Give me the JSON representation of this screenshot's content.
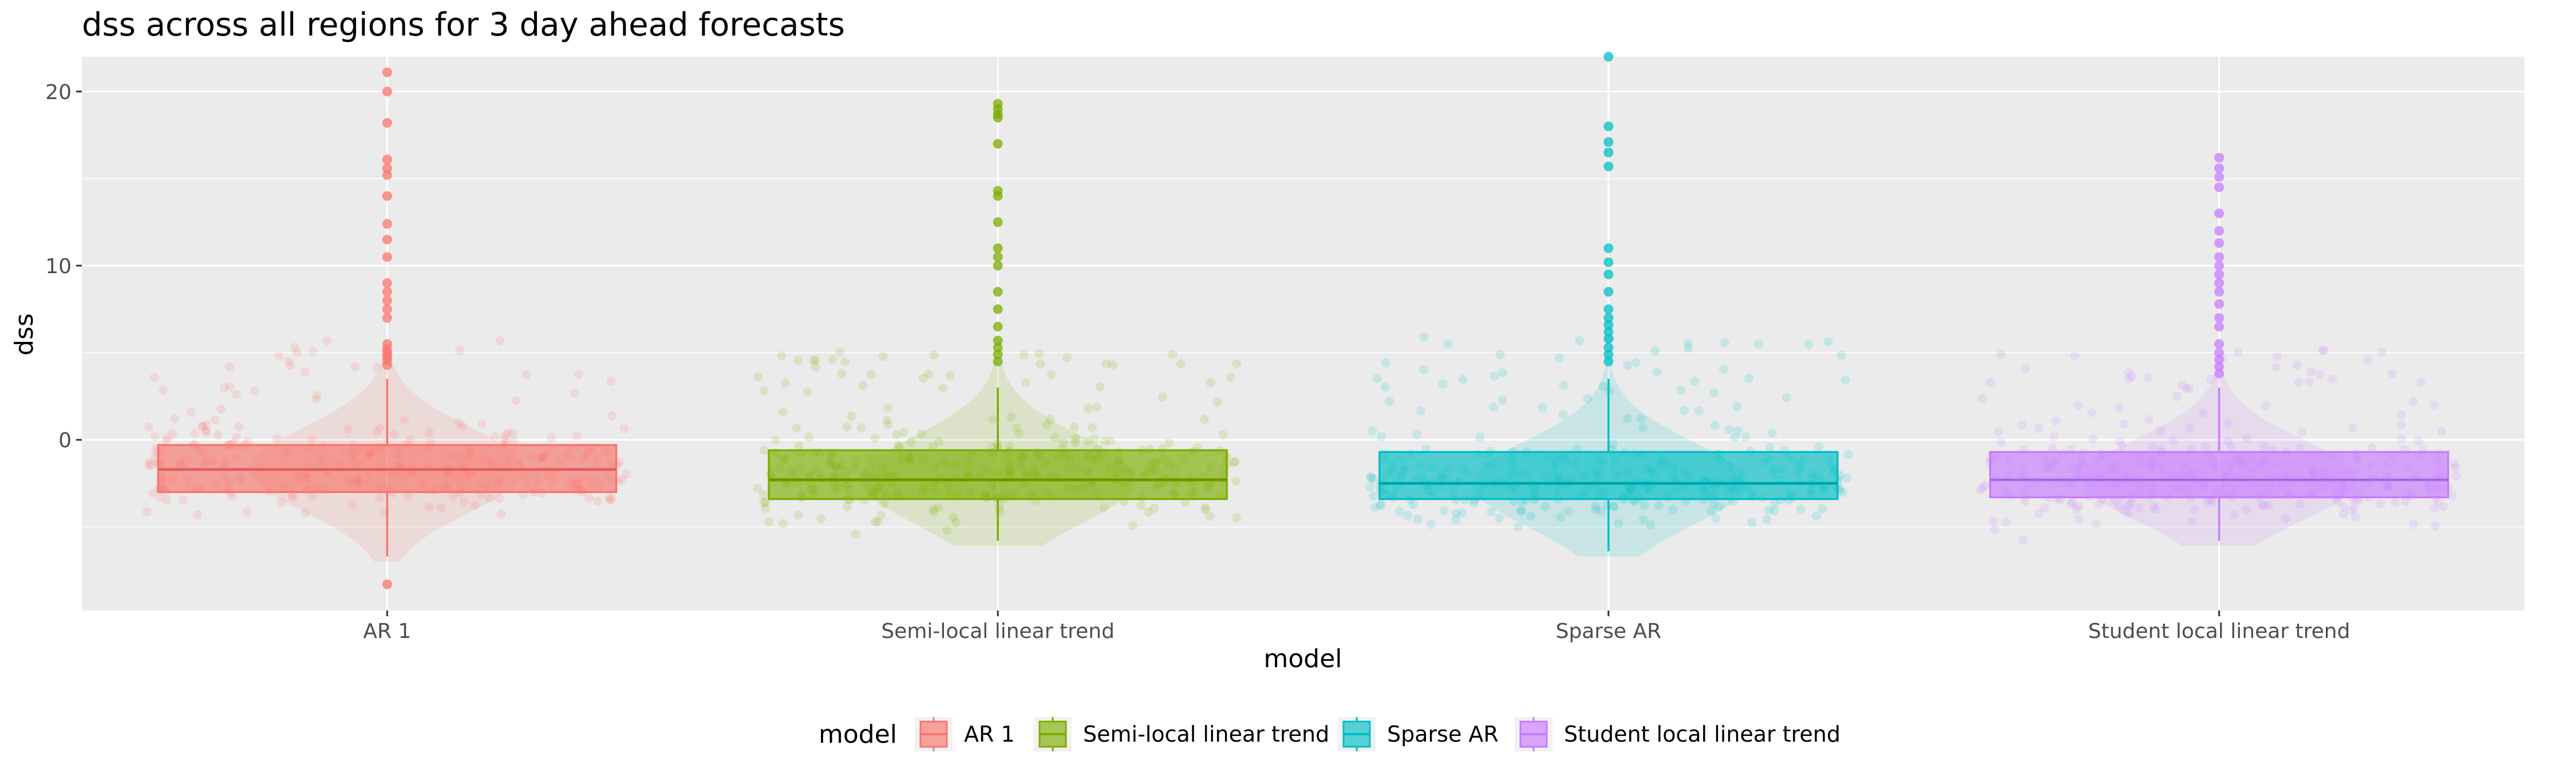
{
  "chart_data": {
    "type": "boxplot",
    "title": "dss across all regions for 3 day ahead forecasts",
    "xlabel": "model",
    "ylabel": "dss",
    "categories": [
      "AR 1",
      "Semi-local linear trend",
      "Sparse AR",
      "Student local linear trend"
    ],
    "ylim": [
      -9.8,
      22
    ],
    "yticks": [
      0,
      10,
      20
    ],
    "grid": true,
    "legend": {
      "title": "model",
      "position": "bottom"
    },
    "colors": [
      "#F8766D",
      "#7CAE00",
      "#00BFC4",
      "#C77CFF"
    ],
    "series": [
      {
        "name": "AR 1",
        "box": {
          "q1": -3.0,
          "median": -1.7,
          "q3": -0.3
        },
        "whisker": {
          "low": -6.7,
          "high": 3.5
        },
        "outliers": [
          4.3,
          4.6,
          4.8,
          5.0,
          5.2,
          5.5,
          7.0,
          7.5,
          8.0,
          8.5,
          9.0,
          10.5,
          11.5,
          12.4,
          14.0,
          15.2,
          15.6,
          16.1,
          18.2,
          20.0,
          21.1,
          -8.3
        ]
      },
      {
        "name": "Semi-local linear trend",
        "box": {
          "q1": -3.4,
          "median": -2.3,
          "q3": -0.6
        },
        "whisker": {
          "low": -5.8,
          "high": 3.0
        },
        "outliers": [
          4.5,
          4.9,
          5.3,
          5.7,
          6.5,
          7.5,
          8.5,
          10.0,
          10.5,
          11.0,
          12.5,
          14.0,
          14.3,
          17.0,
          18.5,
          18.7,
          19.0,
          19.3
        ]
      },
      {
        "name": "Sparse AR",
        "box": {
          "q1": -3.4,
          "median": -2.5,
          "q3": -0.7
        },
        "whisker": {
          "low": -6.4,
          "high": 3.5
        },
        "outliers": [
          4.5,
          4.9,
          5.3,
          5.8,
          6.2,
          6.6,
          7.0,
          7.5,
          8.5,
          9.5,
          10.2,
          11.0,
          15.7,
          16.5,
          17.1,
          18.0,
          22.0
        ]
      },
      {
        "name": "Student local linear trend",
        "box": {
          "q1": -3.3,
          "median": -2.3,
          "q3": -0.7
        },
        "whisker": {
          "low": -5.8,
          "high": 3.0
        },
        "outliers": [
          3.8,
          4.2,
          4.6,
          5.0,
          5.5,
          6.5,
          7.0,
          7.8,
          8.5,
          9.0,
          9.5,
          10.0,
          10.5,
          11.3,
          12.0,
          13.0,
          14.5,
          15.1,
          15.6,
          16.2
        ]
      }
    ]
  }
}
